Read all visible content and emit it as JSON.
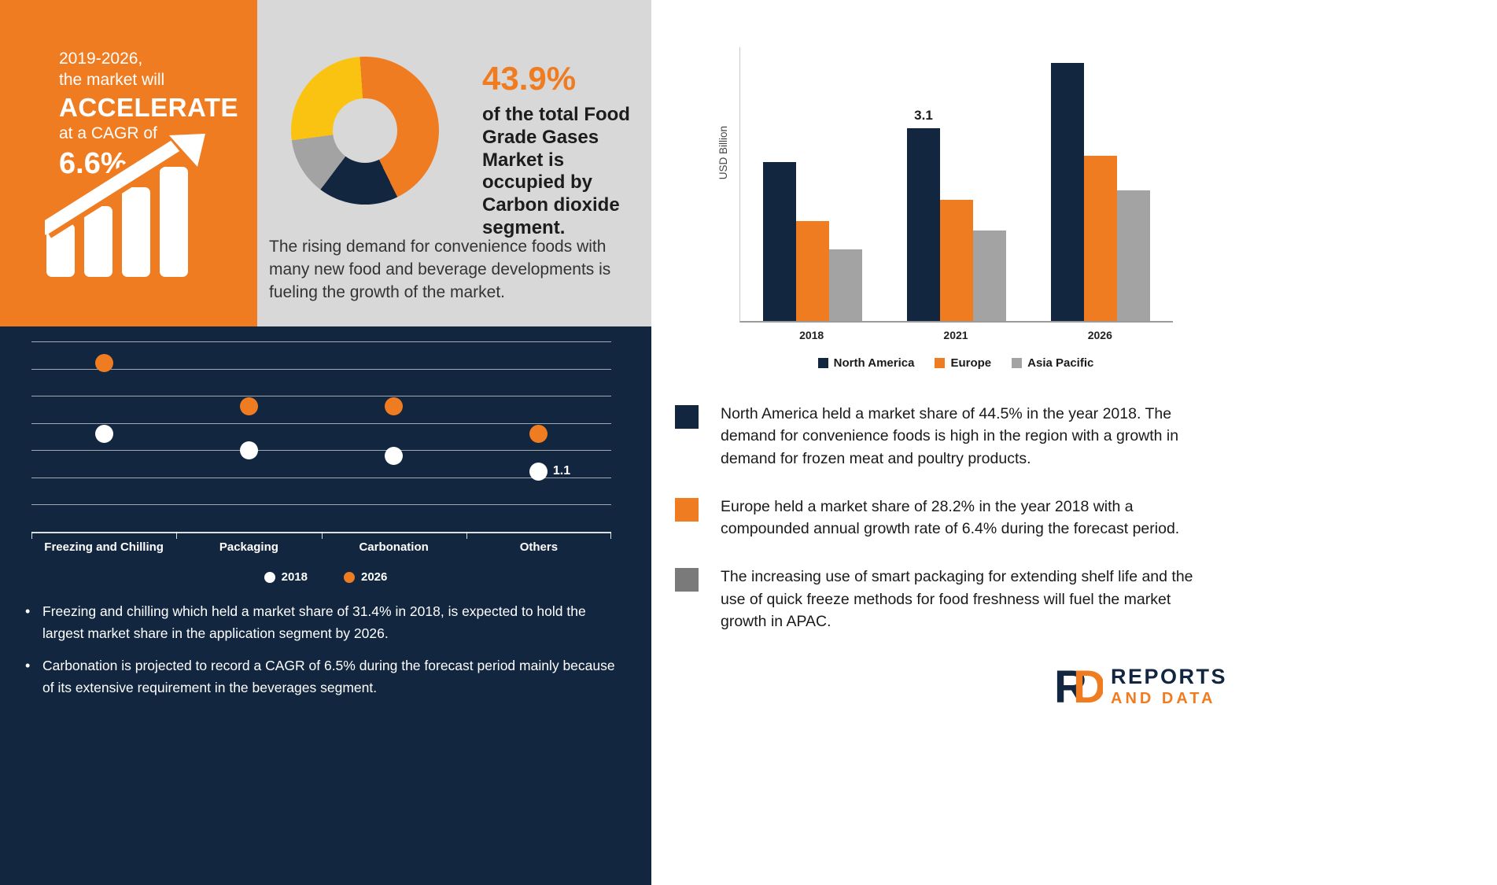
{
  "colors": {
    "orange": "#F07C22",
    "navy": "#12263F",
    "yellow": "#FAC312",
    "gray_series": "#A3A3A3",
    "panel_gray": "#D8D8D8"
  },
  "promo": {
    "line1": "2019-2026,",
    "line2": "the market will",
    "accelerate": "ACCELERATE",
    "line3": "at a CAGR of",
    "cagr": "6.6%"
  },
  "donut_panel": {
    "headline_value": "43.9%",
    "headline_text": "of the total Food Grade Gases Market is occupied by Carbon dioxide segment.",
    "paragraph": "The rising demand for convenience foods with many new food and beverage developments is fueling the growth of the market."
  },
  "application_panel": {
    "bullets": [
      "Freezing and chilling which held a market share of 31.4% in 2018, is expected to hold the largest market share in the application segment by 2026.",
      "Carbonation is projected to record a CAGR of 6.5% during the forecast period mainly because of its extensive requirement in the beverages segment."
    ]
  },
  "region_panel": {
    "bullets": [
      {
        "color": "#12263F",
        "text": "North America held a market share of 44.5% in the year 2018. The demand for convenience foods is high in the region with a growth in demand for frozen meat and poultry products."
      },
      {
        "color": "#F07C22",
        "text": "Europe held a market share of 28.2% in the year 2018 with a compounded annual growth rate of 6.4% during the forecast period."
      },
      {
        "color": "#7A7A7A",
        "text": "The increasing use of smart packaging for extending shelf life and the use of quick freeze methods for food freshness will fuel the market growth in APAC."
      }
    ]
  },
  "logo": {
    "text1": "REPORTS",
    "text2": "AND DATA"
  },
  "chart_data": [
    {
      "type": "pie",
      "donut": true,
      "title": "",
      "labels": [
        "Carbon dioxide",
        "",
        "",
        ""
      ],
      "values": [
        43.9,
        17.5,
        12.6,
        26.0
      ],
      "colors": [
        "#F07C22",
        "#12263F",
        "#A3A3A3",
        "#FAC312"
      ]
    },
    {
      "type": "scatter",
      "title": "",
      "categories": [
        "Freezing and Chilling",
        "Packaging",
        "Carbonation",
        "Others"
      ],
      "series": [
        {
          "name": "2018",
          "color": "#FFFFFF",
          "values": [
            1.45,
            1.3,
            1.25,
            1.1
          ]
        },
        {
          "name": "2026",
          "color": "#F07C22",
          "values": [
            2.1,
            1.7,
            1.7,
            1.45
          ]
        }
      ],
      "ylim": [
        0.55,
        2.3
      ],
      "gridline_count": 7,
      "annotation": {
        "text": "1.1",
        "category_index": 3,
        "series_index": 0
      }
    },
    {
      "type": "bar",
      "title": "",
      "ylabel": "USD Billion",
      "categories": [
        "2018",
        "2021",
        "2026"
      ],
      "series": [
        {
          "name": "North America",
          "color": "#12263F",
          "values": [
            2.55,
            3.1,
            4.15
          ]
        },
        {
          "name": "Europe",
          "color": "#F07C22",
          "values": [
            1.6,
            1.95,
            2.65
          ]
        },
        {
          "name": "Asia Pacific",
          "color": "#A3A3A3",
          "values": [
            1.15,
            1.45,
            2.1
          ]
        }
      ],
      "ylim": [
        0,
        4.4
      ],
      "bar_label": {
        "text": "3.1",
        "category_index": 1,
        "series_index": 0
      },
      "legend_position": "bottom",
      "grid": false
    }
  ]
}
